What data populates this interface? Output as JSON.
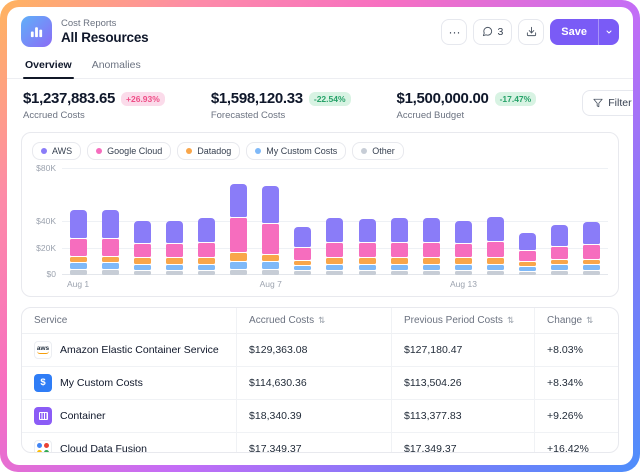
{
  "header": {
    "breadcrumb": "Cost Reports",
    "title": "All Resources",
    "more_button": "···",
    "comments_count": "3",
    "save_label": "Save"
  },
  "tabs": [
    {
      "label": "Overview",
      "active": true
    },
    {
      "label": "Anomalies",
      "active": false
    }
  ],
  "kpis": [
    {
      "value": "$1,237,883.65",
      "delta": "+26.93%",
      "trend": "up",
      "label": "Accrued Costs"
    },
    {
      "value": "$1,598,120.33",
      "delta": "-22.54%",
      "trend": "down",
      "label": "Forecasted Costs"
    },
    {
      "value": "$1,500,000.00",
      "delta": "-17.47%",
      "trend": "down",
      "label": "Accrued Budget"
    }
  ],
  "filter_label": "Filter",
  "chart_data": {
    "type": "bar",
    "stacked": true,
    "title": "",
    "x": [
      "Aug 1",
      "Aug 2",
      "Aug 3",
      "Aug 4",
      "Aug 5",
      "Aug 6",
      "Aug 7",
      "Aug 8",
      "Aug 9",
      "Aug 10",
      "Aug 11",
      "Aug 12",
      "Aug 13",
      "Aug 14",
      "Aug 15",
      "Aug 16",
      "Aug 17"
    ],
    "x_shown": [
      "Aug 1",
      "Aug 7",
      "Aug 13"
    ],
    "ylim": [
      0,
      80000
    ],
    "y_ticks": [
      {
        "label": "$80K",
        "value": 80000
      },
      {
        "label": "$40K",
        "value": 40000
      },
      {
        "label": "$20K",
        "value": 20000
      },
      {
        "label": "$0",
        "value": 0
      }
    ],
    "grid": true,
    "legend_position": "top",
    "series": [
      {
        "name": "AWS",
        "color": "#8A7CF8",
        "values": [
          21000,
          21000,
          17000,
          17000,
          18000,
          25000,
          28000,
          15000,
          18000,
          17000,
          18000,
          18000,
          17000,
          18000,
          13000,
          16000,
          17000
        ]
      },
      {
        "name": "Google Cloud",
        "color": "#F66DBE",
        "values": [
          13000,
          13000,
          10000,
          10000,
          11000,
          26000,
          22000,
          9000,
          11000,
          11000,
          11000,
          11000,
          10000,
          12000,
          8000,
          9000,
          10000
        ]
      },
      {
        "name": "Datadog",
        "color": "#F9A64A",
        "values": [
          4000,
          4000,
          4000,
          4000,
          4000,
          6000,
          5000,
          3000,
          4000,
          4000,
          4000,
          4000,
          4000,
          4000,
          3000,
          3000,
          3000
        ]
      },
      {
        "name": "My Custom Costs",
        "color": "#7FB9F8",
        "values": [
          4000,
          4000,
          4000,
          4000,
          4000,
          5000,
          5000,
          3000,
          4000,
          4000,
          4000,
          4000,
          4000,
          4000,
          3000,
          4000,
          4000
        ]
      },
      {
        "name": "Other",
        "color": "#C7CDD6",
        "values": [
          4000,
          4000,
          3000,
          3000,
          3000,
          4000,
          4000,
          3000,
          3000,
          3000,
          3000,
          3000,
          3000,
          3000,
          2000,
          3000,
          3000
        ]
      }
    ]
  },
  "table": {
    "columns": [
      {
        "label": "Service",
        "sortable": false
      },
      {
        "label": "Accrued Costs",
        "sortable": true
      },
      {
        "label": "Previous Period Costs",
        "sortable": true
      },
      {
        "label": "Change",
        "sortable": true
      }
    ],
    "rows": [
      {
        "icon": "aws-ecs-icon",
        "service": "Amazon Elastic Container Service",
        "accrued_costs": "$129,363.08",
        "previous_period_costs": "$127,180.47",
        "change": "+8.03%"
      },
      {
        "icon": "custom-costs-icon",
        "service": "My Custom Costs",
        "accrued_costs": "$114,630.36",
        "previous_period_costs": "$113,504.26",
        "change": "+8.34%"
      },
      {
        "icon": "container-icon",
        "service": "Container",
        "accrued_costs": "$18,340.39",
        "previous_period_costs": "$113,377.83",
        "change": "+9.26%"
      },
      {
        "icon": "data-fusion-icon",
        "service": "Cloud Data Fusion",
        "accrued_costs": "$17,349.37",
        "previous_period_costs": "$17,349.37",
        "change": "+16.42%"
      }
    ]
  },
  "colors": {
    "accent": "#7A5BF6",
    "badge_up_bg": "#FBDBEA",
    "badge_up_text": "#EF4E87",
    "badge_down_bg": "#D8F3E3",
    "badge_down_text": "#27A269",
    "google_dot_colors": [
      "#4285F4",
      "#EA4335",
      "#FBBC05",
      "#34A853"
    ]
  }
}
